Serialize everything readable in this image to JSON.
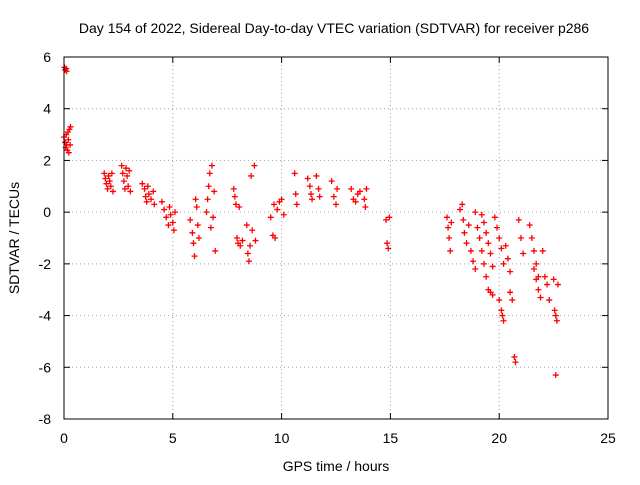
{
  "chart_data": {
    "type": "scatter",
    "title": "Day 154 of 2022, Sidereal Day-to-day VTEC variation (SDTVAR) for receiver p286",
    "xlabel": "GPS time / hours",
    "ylabel": "SDTVAR / TECUs",
    "xlim": [
      0,
      25
    ],
    "ylim": [
      -8,
      6
    ],
    "xticks": [
      0,
      5,
      10,
      15,
      20,
      25
    ],
    "yticks": [
      -8,
      -6,
      -4,
      -2,
      0,
      2,
      4,
      6
    ],
    "xtick_labels": [
      "0",
      "5",
      "10",
      "15",
      "20",
      "25"
    ],
    "ytick_labels": [
      "-8",
      "-6",
      "-4",
      "-2",
      "0",
      "2",
      "4",
      "6"
    ],
    "grid": true,
    "marker": "+",
    "series": [
      {
        "name": "SDTVAR",
        "color": "#ff0000",
        "points": [
          [
            0.02,
            5.6
          ],
          [
            0.05,
            5.5
          ],
          [
            0.1,
            5.55
          ],
          [
            0.12,
            5.45
          ],
          [
            0.0,
            2.9
          ],
          [
            0.05,
            2.7
          ],
          [
            0.08,
            2.5
          ],
          [
            0.1,
            3.0
          ],
          [
            0.12,
            2.6
          ],
          [
            0.15,
            2.4
          ],
          [
            0.18,
            3.1
          ],
          [
            0.2,
            2.8
          ],
          [
            0.22,
            2.3
          ],
          [
            0.25,
            3.2
          ],
          [
            0.28,
            2.6
          ],
          [
            0.3,
            3.3
          ],
          [
            1.85,
            1.5
          ],
          [
            1.9,
            1.3
          ],
          [
            1.95,
            1.1
          ],
          [
            2.0,
            0.9
          ],
          [
            2.05,
            1.4
          ],
          [
            2.1,
            1.2
          ],
          [
            2.15,
            1.0
          ],
          [
            2.2,
            1.5
          ],
          [
            2.25,
            0.8
          ],
          [
            2.65,
            1.8
          ],
          [
            2.7,
            1.5
          ],
          [
            2.75,
            1.2
          ],
          [
            2.8,
            0.9
          ],
          [
            2.85,
            1.7
          ],
          [
            2.9,
            1.4
          ],
          [
            2.95,
            1.0
          ],
          [
            3.0,
            1.6
          ],
          [
            3.05,
            0.8
          ],
          [
            3.6,
            1.1
          ],
          [
            3.7,
            0.9
          ],
          [
            3.75,
            0.6
          ],
          [
            3.8,
            0.4
          ],
          [
            3.85,
            1.0
          ],
          [
            3.9,
            0.7
          ],
          [
            4.0,
            0.5
          ],
          [
            4.1,
            0.8
          ],
          [
            4.15,
            0.3
          ],
          [
            4.5,
            0.4
          ],
          [
            4.6,
            0.1
          ],
          [
            4.7,
            -0.2
          ],
          [
            4.8,
            -0.5
          ],
          [
            4.85,
            0.2
          ],
          [
            4.9,
            -0.1
          ],
          [
            5.0,
            -0.4
          ],
          [
            5.05,
            -0.7
          ],
          [
            5.1,
            0.0
          ],
          [
            5.8,
            -0.3
          ],
          [
            5.9,
            -0.8
          ],
          [
            5.95,
            -1.2
          ],
          [
            6.0,
            -1.7
          ],
          [
            6.05,
            0.5
          ],
          [
            6.1,
            0.2
          ],
          [
            6.15,
            -0.5
          ],
          [
            6.2,
            -1.0
          ],
          [
            6.55,
            0.0
          ],
          [
            6.6,
            0.5
          ],
          [
            6.65,
            1.0
          ],
          [
            6.7,
            1.5
          ],
          [
            6.75,
            -0.6
          ],
          [
            6.8,
            1.8
          ],
          [
            6.85,
            -0.2
          ],
          [
            6.9,
            0.8
          ],
          [
            6.95,
            -1.5
          ],
          [
            7.8,
            0.9
          ],
          [
            7.85,
            0.6
          ],
          [
            7.9,
            0.3
          ],
          [
            7.95,
            -1.0
          ],
          [
            8.0,
            -1.2
          ],
          [
            8.05,
            0.2
          ],
          [
            8.1,
            -1.3
          ],
          [
            8.2,
            -1.1
          ],
          [
            8.4,
            -0.5
          ],
          [
            8.45,
            -1.6
          ],
          [
            8.5,
            -1.9
          ],
          [
            8.55,
            -1.3
          ],
          [
            8.6,
            1.4
          ],
          [
            8.65,
            -0.7
          ],
          [
            8.75,
            1.8
          ],
          [
            8.8,
            -1.1
          ],
          [
            9.5,
            -0.2
          ],
          [
            9.6,
            -0.9
          ],
          [
            9.65,
            0.3
          ],
          [
            9.7,
            -1.0
          ],
          [
            9.8,
            0.1
          ],
          [
            9.9,
            0.4
          ],
          [
            10.0,
            0.5
          ],
          [
            10.1,
            -0.1
          ],
          [
            10.6,
            1.5
          ],
          [
            10.65,
            0.7
          ],
          [
            10.7,
            0.3
          ],
          [
            11.2,
            1.3
          ],
          [
            11.3,
            1.0
          ],
          [
            11.35,
            0.7
          ],
          [
            11.4,
            0.5
          ],
          [
            11.6,
            1.4
          ],
          [
            11.7,
            0.9
          ],
          [
            11.75,
            0.6
          ],
          [
            12.3,
            1.2
          ],
          [
            12.4,
            0.6
          ],
          [
            12.5,
            0.3
          ],
          [
            12.55,
            0.9
          ],
          [
            13.2,
            0.9
          ],
          [
            13.3,
            0.5
          ],
          [
            13.4,
            0.4
          ],
          [
            13.5,
            0.7
          ],
          [
            13.6,
            0.8
          ],
          [
            13.8,
            0.5
          ],
          [
            13.85,
            0.2
          ],
          [
            13.9,
            0.9
          ],
          [
            14.8,
            -0.3
          ],
          [
            14.85,
            -1.2
          ],
          [
            14.9,
            -1.4
          ],
          [
            14.95,
            -0.2
          ],
          [
            17.6,
            -0.2
          ],
          [
            17.65,
            -0.6
          ],
          [
            17.7,
            -1.0
          ],
          [
            17.75,
            -1.5
          ],
          [
            17.8,
            -0.4
          ],
          [
            18.2,
            0.1
          ],
          [
            18.3,
            0.3
          ],
          [
            18.35,
            -0.3
          ],
          [
            18.4,
            -0.8
          ],
          [
            18.5,
            -1.2
          ],
          [
            18.6,
            -0.5
          ],
          [
            18.7,
            -1.5
          ],
          [
            18.8,
            -1.9
          ],
          [
            18.9,
            -2.2
          ],
          [
            18.9,
            0.0
          ],
          [
            19.0,
            -0.6
          ],
          [
            19.1,
            -1.0
          ],
          [
            19.2,
            -1.5
          ],
          [
            19.3,
            -2.0
          ],
          [
            19.4,
            -2.5
          ],
          [
            19.2,
            -0.1
          ],
          [
            19.3,
            -0.4
          ],
          [
            19.4,
            -0.8
          ],
          [
            19.5,
            -1.2
          ],
          [
            19.6,
            -1.6
          ],
          [
            19.7,
            -2.1
          ],
          [
            19.5,
            -3.0
          ],
          [
            19.6,
            -3.1
          ],
          [
            19.7,
            -3.2
          ],
          [
            19.8,
            -0.2
          ],
          [
            19.9,
            -0.6
          ],
          [
            20.0,
            -1.0
          ],
          [
            20.1,
            -1.4
          ],
          [
            20.2,
            -2.0
          ],
          [
            20.0,
            -3.4
          ],
          [
            20.1,
            -3.8
          ],
          [
            20.15,
            -4.0
          ],
          [
            20.2,
            -4.2
          ],
          [
            20.3,
            -1.3
          ],
          [
            20.4,
            -1.8
          ],
          [
            20.5,
            -2.3
          ],
          [
            20.5,
            -3.1
          ],
          [
            20.6,
            -3.4
          ],
          [
            20.7,
            -5.6
          ],
          [
            20.75,
            -5.8
          ],
          [
            20.9,
            -0.3
          ],
          [
            21.0,
            -1.0
          ],
          [
            21.1,
            -1.6
          ],
          [
            21.4,
            -0.5
          ],
          [
            21.5,
            -1.0
          ],
          [
            21.6,
            -1.5
          ],
          [
            21.7,
            -2.0
          ],
          [
            21.8,
            -2.5
          ],
          [
            21.6,
            -2.2
          ],
          [
            21.7,
            -2.6
          ],
          [
            21.8,
            -3.0
          ],
          [
            21.9,
            -3.3
          ],
          [
            22.0,
            -1.5
          ],
          [
            22.1,
            -2.5
          ],
          [
            22.2,
            -2.8
          ],
          [
            22.3,
            -3.4
          ],
          [
            22.5,
            -2.6
          ],
          [
            22.55,
            -3.8
          ],
          [
            22.6,
            -4.0
          ],
          [
            22.65,
            -4.2
          ],
          [
            22.7,
            -2.8
          ],
          [
            22.6,
            -6.3
          ]
        ]
      }
    ]
  }
}
